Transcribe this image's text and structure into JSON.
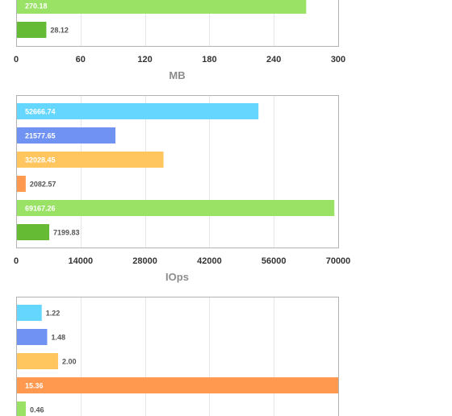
{
  "chart_data": [
    {
      "type": "bar",
      "orientation": "horizontal",
      "xlabel": "MB",
      "xlim": [
        0,
        300
      ],
      "xticks": [
        "0",
        "60",
        "120",
        "180",
        "240",
        "300"
      ],
      "grid": true,
      "bars": [
        {
          "label": "270.18",
          "value": 270.18,
          "color": "#99e265"
        },
        {
          "label": "28.12",
          "value": 28.12,
          "color": "#65bb33"
        }
      ]
    },
    {
      "type": "bar",
      "orientation": "horizontal",
      "xlabel": "IOps",
      "xlim": [
        0,
        70000
      ],
      "xticks": [
        "0",
        "14000",
        "28000",
        "42000",
        "56000",
        "70000"
      ],
      "grid": true,
      "bars": [
        {
          "label": "52666.74",
          "value": 52666.74,
          "color": "#65d6fe"
        },
        {
          "label": "21577.65",
          "value": 21577.65,
          "color": "#6f92f3"
        },
        {
          "label": "32028.45",
          "value": 32028.45,
          "color": "#ffc660"
        },
        {
          "label": "2082.57",
          "value": 2082.57,
          "color": "#ff9950"
        },
        {
          "label": "69167.26",
          "value": 69167.26,
          "color": "#99e265"
        },
        {
          "label": "7199.83",
          "value": 7199.83,
          "color": "#65bb33"
        }
      ]
    },
    {
      "type": "bar",
      "orientation": "horizontal",
      "xlim": [
        0,
        15.36
      ],
      "grid": true,
      "bars": [
        {
          "label": "1.22",
          "value": 1.22,
          "color": "#65d6fe"
        },
        {
          "label": "1.48",
          "value": 1.48,
          "color": "#6f92f3"
        },
        {
          "label": "2.00",
          "value": 2.0,
          "color": "#ffc660"
        },
        {
          "label": "15.36",
          "value": 15.36,
          "color": "#ff9950"
        },
        {
          "label": "0.46",
          "value": 0.46,
          "color": "#99e265"
        }
      ]
    }
  ]
}
